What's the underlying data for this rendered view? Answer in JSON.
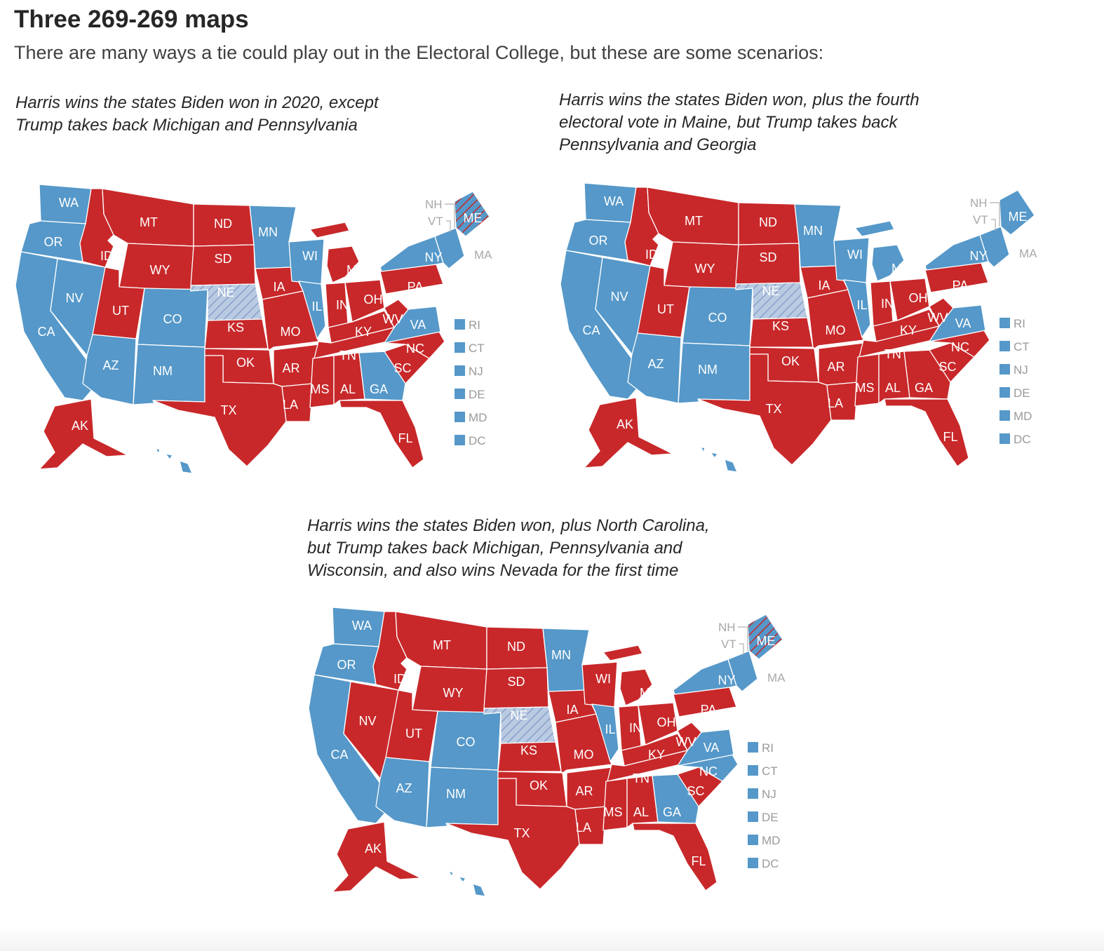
{
  "title": "Three 269-269 maps",
  "subtitle": "There are many ways a tie could play out in the Electoral College, but these are some scenarios:",
  "colors": {
    "dem": "#5598c9",
    "rep": "#c8282a",
    "split_hatch": "#8a9ecb"
  },
  "maps": [
    {
      "caption_lines": [
        "Harris wins the states Biden won in 2020, except",
        "Trump takes back Michigan and Pennsylvania"
      ],
      "states": {
        "WA": "D",
        "OR": "D",
        "CA": "D",
        "NV": "D",
        "ID": "R",
        "MT": "R",
        "WY": "R",
        "UT": "R",
        "AZ": "D",
        "CO": "D",
        "NM": "D",
        "ND": "R",
        "SD": "R",
        "NE": "split",
        "KS": "R",
        "OK": "R",
        "TX": "R",
        "MN": "D",
        "IA": "R",
        "MO": "R",
        "AR": "R",
        "LA": "R",
        "WI": "D",
        "IL": "D",
        "MI": "R",
        "IN": "R",
        "OH": "R",
        "KY": "R",
        "TN": "R",
        "MS": "R",
        "AL": "R",
        "GA": "D",
        "FL": "R",
        "SC": "R",
        "NC": "R",
        "VA": "D",
        "WV": "R",
        "PA": "R",
        "NY": "D",
        "ME": "split",
        "NE_STATES": "D",
        "AK": "R",
        "HI": "D"
      },
      "side": [
        "RI",
        "CT",
        "NJ",
        "DE",
        "MD",
        "DC"
      ],
      "callouts": [
        "NH",
        "VT",
        "MA"
      ]
    },
    {
      "caption_lines": [
        "Harris wins the states Biden won, plus the fourth",
        "electoral vote in Maine, but Trump takes back",
        "Pennsylvania and Georgia"
      ],
      "states": {
        "WA": "D",
        "OR": "D",
        "CA": "D",
        "NV": "D",
        "ID": "R",
        "MT": "R",
        "WY": "R",
        "UT": "R",
        "AZ": "D",
        "CO": "D",
        "NM": "D",
        "ND": "R",
        "SD": "R",
        "NE": "split",
        "KS": "R",
        "OK": "R",
        "TX": "R",
        "MN": "D",
        "IA": "R",
        "MO": "R",
        "AR": "R",
        "LA": "R",
        "WI": "D",
        "IL": "D",
        "MI": "D",
        "IN": "R",
        "OH": "R",
        "KY": "R",
        "TN": "R",
        "MS": "R",
        "AL": "R",
        "GA": "R",
        "FL": "R",
        "SC": "R",
        "NC": "R",
        "VA": "D",
        "WV": "R",
        "PA": "R",
        "NY": "D",
        "ME": "D",
        "NE_STATES": "D",
        "AK": "R",
        "HI": "D"
      },
      "side": [
        "RI",
        "CT",
        "NJ",
        "DE",
        "MD",
        "DC"
      ],
      "callouts": [
        "NH",
        "VT",
        "MA"
      ]
    },
    {
      "caption_lines": [
        "Harris wins the states Biden won, plus North Carolina,",
        "but Trump takes back Michigan, Pennsylvania and",
        "Wisconsin, and also wins Nevada for the first time"
      ],
      "states": {
        "WA": "D",
        "OR": "D",
        "CA": "D",
        "NV": "R",
        "ID": "R",
        "MT": "R",
        "WY": "R",
        "UT": "R",
        "AZ": "D",
        "CO": "D",
        "NM": "D",
        "ND": "R",
        "SD": "R",
        "NE": "split",
        "KS": "R",
        "OK": "R",
        "TX": "R",
        "MN": "D",
        "IA": "R",
        "MO": "R",
        "AR": "R",
        "LA": "R",
        "WI": "R",
        "IL": "D",
        "MI": "R",
        "IN": "R",
        "OH": "R",
        "KY": "R",
        "TN": "R",
        "MS": "R",
        "AL": "R",
        "GA": "D",
        "FL": "R",
        "SC": "R",
        "NC": "D",
        "VA": "D",
        "WV": "R",
        "PA": "R",
        "NY": "D",
        "ME": "split",
        "NE_STATES": "D",
        "AK": "R",
        "HI": "D"
      },
      "side": [
        "RI",
        "CT",
        "NJ",
        "DE",
        "MD",
        "DC"
      ],
      "callouts": [
        "NH",
        "VT",
        "MA"
      ]
    }
  ]
}
